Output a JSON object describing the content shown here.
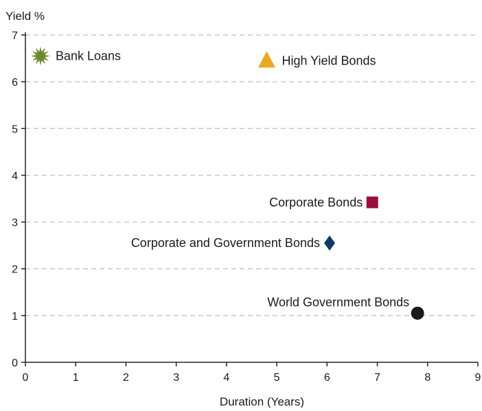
{
  "chart_data": {
    "type": "scatter",
    "title": "",
    "xlabel": "Duration (Years)",
    "ylabel": "Yield %",
    "xlim": [
      0,
      9
    ],
    "ylim": [
      0,
      7
    ],
    "x_ticks": [
      0,
      1,
      2,
      3,
      4,
      5,
      6,
      7,
      8,
      9
    ],
    "y_ticks": [
      0,
      1,
      2,
      3,
      4,
      5,
      6,
      7
    ],
    "grid": "horizontal-dashed",
    "legend": "none",
    "points": [
      {
        "name": "Bank Loans",
        "x": 0.3,
        "y": 6.55,
        "marker": "star",
        "color": "#6b8a2e",
        "label_side": "right"
      },
      {
        "name": "High Yield Bonds",
        "x": 4.8,
        "y": 6.45,
        "marker": "triangle",
        "color": "#e8a823",
        "label_side": "right"
      },
      {
        "name": "Corporate Bonds",
        "x": 6.9,
        "y": 3.42,
        "marker": "square",
        "color": "#9b0d3a",
        "label_side": "left"
      },
      {
        "name": "Corporate and Government Bonds",
        "x": 6.05,
        "y": 2.55,
        "marker": "diamond",
        "color": "#0e3a66",
        "label_side": "left"
      },
      {
        "name": "World Government Bonds",
        "x": 7.8,
        "y": 1.05,
        "marker": "circle",
        "color": "#1a1a1a",
        "label_side": "above-left"
      }
    ]
  }
}
